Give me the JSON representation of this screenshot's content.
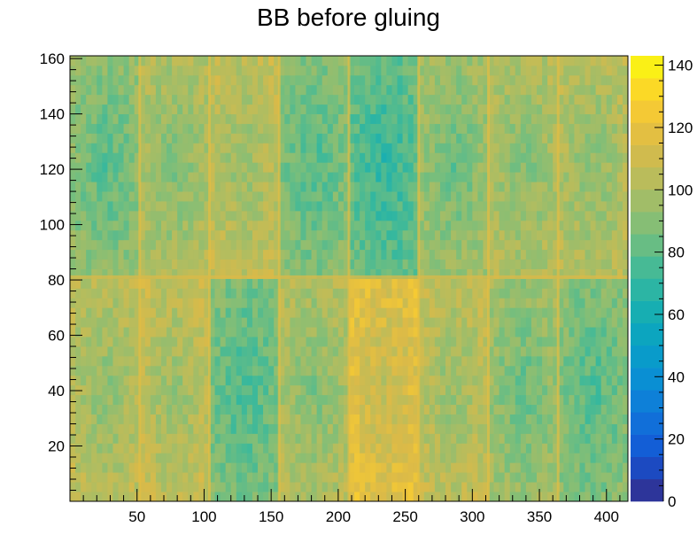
{
  "chart_data": {
    "type": "heatmap",
    "title": "BB before gluing",
    "xlabel": "",
    "ylabel": "",
    "xlim": [
      0,
      416
    ],
    "ylim": [
      0,
      161
    ],
    "zlim": [
      0,
      143
    ],
    "x_ticks": [
      50,
      100,
      150,
      200,
      250,
      300,
      350,
      400
    ],
    "y_ticks": [
      20,
      40,
      60,
      80,
      100,
      120,
      140,
      160
    ],
    "z_ticks": [
      0,
      20,
      40,
      60,
      80,
      100,
      120,
      140
    ],
    "colormap": "parula",
    "grid": false,
    "module_blocks": [
      {
        "x": [
          0,
          52
        ],
        "y": [
          0,
          81
        ],
        "mean_z": 98
      },
      {
        "x": [
          52,
          104
        ],
        "y": [
          0,
          81
        ],
        "mean_z": 101
      },
      {
        "x": [
          104,
          156
        ],
        "y": [
          0,
          81
        ],
        "mean_z": 82
      },
      {
        "x": [
          156,
          208
        ],
        "y": [
          0,
          81
        ],
        "mean_z": 95
      },
      {
        "x": [
          208,
          260
        ],
        "y": [
          0,
          81
        ],
        "mean_z": 112
      },
      {
        "x": [
          260,
          312
        ],
        "y": [
          0,
          81
        ],
        "mean_z": 100
      },
      {
        "x": [
          312,
          364
        ],
        "y": [
          0,
          81
        ],
        "mean_z": 90
      },
      {
        "x": [
          364,
          416
        ],
        "y": [
          0,
          81
        ],
        "mean_z": 84
      },
      {
        "x": [
          0,
          52
        ],
        "y": [
          81,
          161
        ],
        "mean_z": 86
      },
      {
        "x": [
          52,
          104
        ],
        "y": [
          81,
          161
        ],
        "mean_z": 95
      },
      {
        "x": [
          104,
          156
        ],
        "y": [
          81,
          161
        ],
        "mean_z": 100
      },
      {
        "x": [
          156,
          208
        ],
        "y": [
          81,
          161
        ],
        "mean_z": 84
      },
      {
        "x": [
          208,
          260
        ],
        "y": [
          81,
          161
        ],
        "mean_z": 76
      },
      {
        "x": [
          260,
          312
        ],
        "y": [
          81,
          161
        ],
        "mean_z": 90
      },
      {
        "x": [
          312,
          364
        ],
        "y": [
          81,
          161
        ],
        "mean_z": 95
      },
      {
        "x": [
          364,
          416
        ],
        "y": [
          81,
          161
        ],
        "mean_z": 97
      }
    ]
  }
}
